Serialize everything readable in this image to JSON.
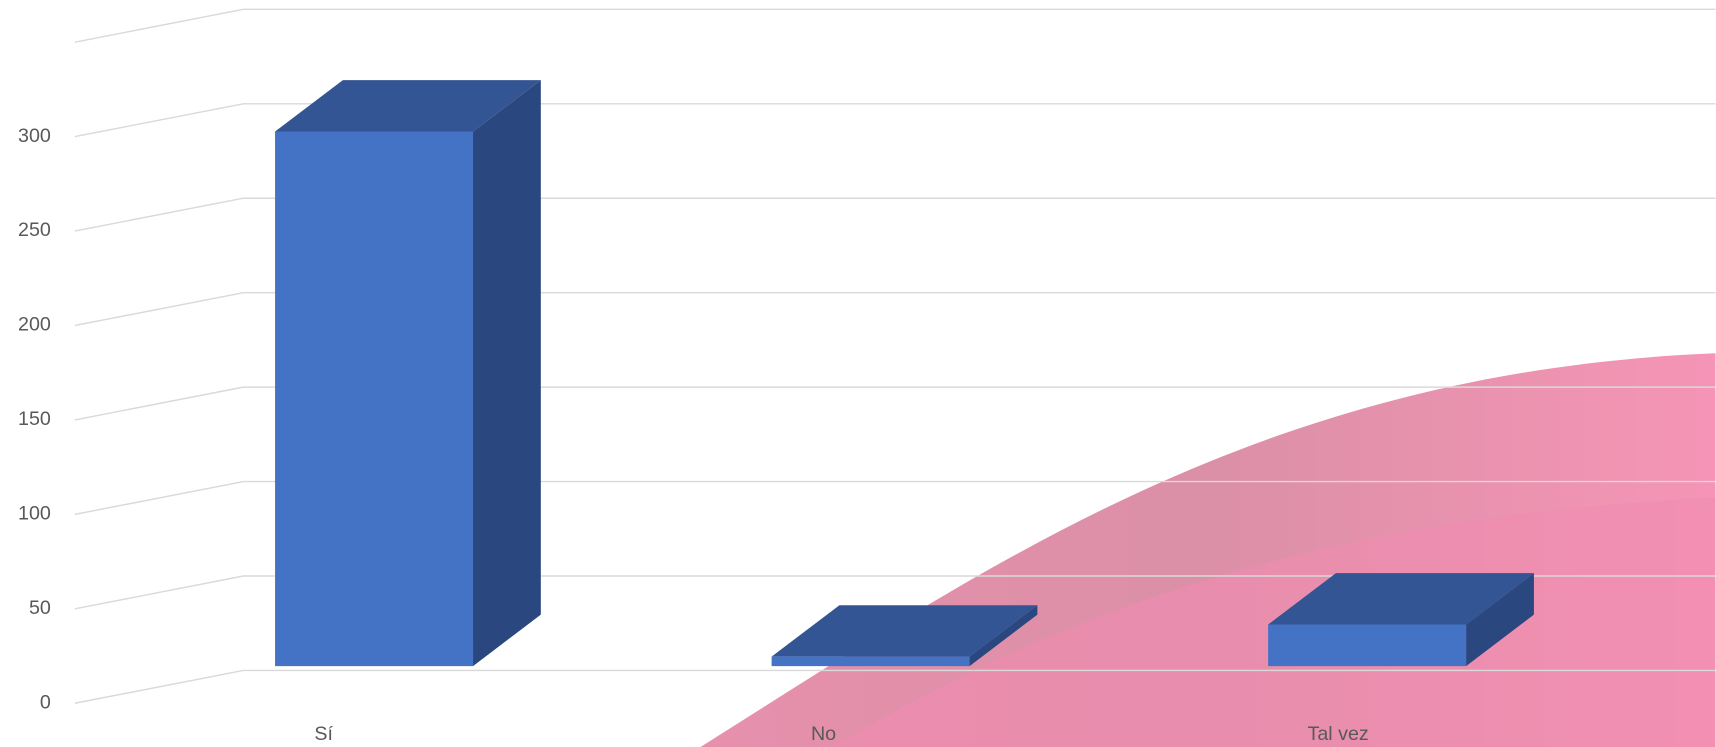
{
  "chart_data": {
    "type": "bar3d",
    "categories": [
      "Sí",
      "No",
      "Tal vez"
    ],
    "values": [
      283,
      5,
      22
    ],
    "colors": {
      "front": "#4472c4",
      "top": "#335593",
      "side": "#2a4780"
    },
    "ylim": [
      0,
      350
    ],
    "yticks": [
      0,
      50,
      100,
      150,
      200,
      250,
      300
    ],
    "grid": true
  }
}
